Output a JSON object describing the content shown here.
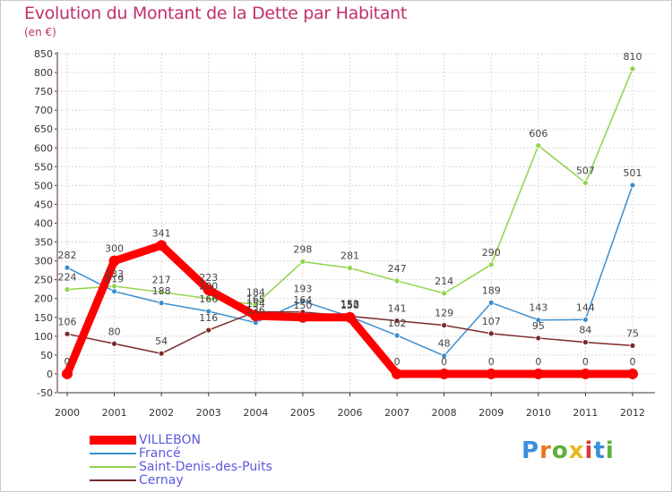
{
  "title": "Evolution du Montant de la Dette par Habitant",
  "subtitle": "(en €)",
  "logo": {
    "letters": [
      "P",
      "r",
      "o",
      "x",
      "i",
      "t",
      "i"
    ],
    "colors": [
      "#3a8fd8",
      "#e8761f",
      "#5cb038",
      "#e8b81f",
      "#d83a3a",
      "#3a8fd8",
      "#5cb038"
    ]
  },
  "chart_data": {
    "type": "line",
    "title": "Evolution du Montant de la Dette par Habitant",
    "subtitle": "(en €)",
    "x": [
      "2000",
      "2001",
      "2002",
      "2003",
      "2004",
      "2005",
      "2006",
      "2007",
      "2008",
      "2009",
      "2010",
      "2011",
      "2012"
    ],
    "ylim": [
      -50,
      850
    ],
    "yticks": [
      -50,
      0,
      50,
      100,
      150,
      200,
      250,
      300,
      350,
      400,
      450,
      500,
      550,
      600,
      650,
      700,
      750,
      800,
      850
    ],
    "grid": true,
    "legend_position": "bottom-left",
    "series": [
      {
        "name": "VILLEBON",
        "color": "#ff0000",
        "values": [
          0,
          300,
          341,
          223,
          154,
          150,
          150,
          0,
          0,
          0,
          0,
          0,
          0
        ],
        "labels": [
          "0",
          "300",
          "341",
          "223",
          "154",
          "150",
          "150",
          "0",
          "0",
          "0",
          "0",
          "0",
          "0"
        ]
      },
      {
        "name": "Francé",
        "color": "#3a8ed0",
        "values": [
          282,
          219,
          188,
          166,
          136,
          193,
          152,
          102,
          48,
          189,
          143,
          144,
          501
        ],
        "labels": [
          "282",
          "219",
          "188",
          "166",
          "136",
          "193",
          "152",
          "102",
          "48",
          "189",
          "143",
          "144",
          "501"
        ]
      },
      {
        "name": "Saint-Denis-des-Puits",
        "color": "#8fd44a",
        "values": [
          224,
          233,
          217,
          200,
          184,
          298,
          281,
          247,
          214,
          290,
          606,
          507,
          810
        ],
        "labels": [
          "224",
          "233",
          "217",
          "200",
          "184",
          "298",
          "281",
          "247",
          "214",
          "290",
          "606",
          "507",
          "810"
        ]
      },
      {
        "name": "Cernay",
        "color": "#7a2a2a",
        "values": [
          106,
          80,
          54,
          116,
          165,
          164,
          153,
          141,
          129,
          107,
          95,
          84,
          75
        ],
        "labels": [
          "106",
          "80",
          "54",
          "116",
          "165",
          "164",
          "153",
          "141",
          "129",
          "107",
          "95",
          "84",
          "75"
        ]
      }
    ]
  },
  "legend": [
    {
      "label": "VILLEBON"
    },
    {
      "label": "Francé"
    },
    {
      "label": "Saint-Denis-des-Puits"
    },
    {
      "label": "Cernay"
    }
  ]
}
